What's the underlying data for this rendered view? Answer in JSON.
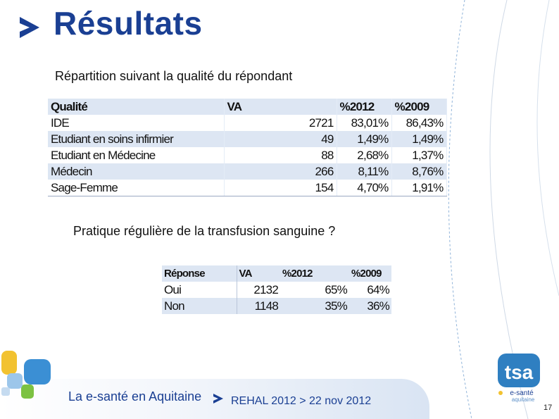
{
  "slide": {
    "title": "Résultats",
    "subtitle1": "Répartition suivant la qualité du répondant",
    "subtitle2": "Pratique régulière de la transfusion sanguine ?"
  },
  "table1": {
    "headers": [
      "Qualité",
      "VA",
      "%2012",
      "%2009"
    ],
    "rows": [
      [
        "IDE",
        "2721",
        "83,01%",
        "86,43%"
      ],
      [
        "Etudiant en soins infirmier",
        "49",
        "1,49%",
        "1,49%"
      ],
      [
        "Etudiant en Médecine",
        "88",
        "2,68%",
        "1,37%"
      ],
      [
        "Médecin",
        "266",
        "8,11%",
        "8,76%"
      ],
      [
        "Sage-Femme",
        "154",
        "4,70%",
        "1,91%"
      ]
    ]
  },
  "table2": {
    "headers": [
      "Réponse",
      "VA",
      "%2012",
      "%2009"
    ],
    "rows": [
      [
        "Oui",
        "2132",
        "65%",
        "64%"
      ],
      [
        "Non",
        "1148",
        "35%",
        "36%"
      ]
    ]
  },
  "footer": {
    "brand": "La e-santé en Aquitaine",
    "event": "REHAL 2012 > 22 nov 2012",
    "page_number": "17",
    "logo_text": "tsa",
    "logo_sub1": "e-santé",
    "logo_sub2": "aquitaine"
  },
  "colors": {
    "title": "#1a3f93",
    "table_band": "#dde6f3",
    "accent_blue": "#3b8fd4",
    "accent_yellow": "#f2c230",
    "accent_green": "#7cc242"
  }
}
